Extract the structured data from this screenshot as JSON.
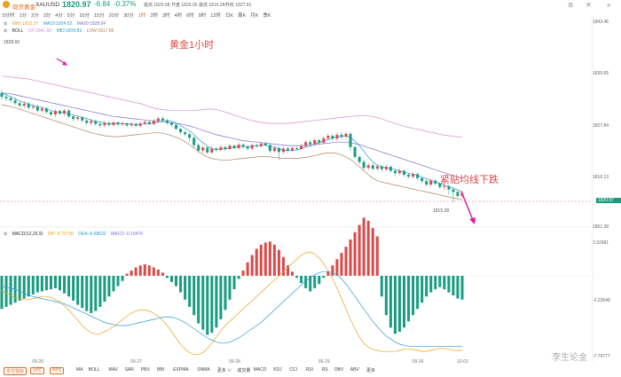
{
  "header": {
    "name": "现货黄金",
    "symbol": "XAUUSD",
    "price": "1820.97",
    "change": "-6.84",
    "change_pct": "-0.37%",
    "high": "最高 1829.58",
    "open": "开盘 1829.00",
    "low": "最低 1815.28",
    "prev_close": "昨收 1827.81"
  },
  "timeframes": [
    "5分时",
    "1分",
    "2分",
    "3分",
    "4分",
    "5分",
    "10分",
    "15分",
    "20分",
    "30分",
    "1时",
    "2时",
    "3时",
    "4时",
    "6时",
    "8时",
    "12时",
    "日K",
    "周K",
    "月K",
    "季K"
  ],
  "active_timeframe": 10,
  "legend": {
    "ma": [
      "MA5:1822.37",
      "MA10:1824.52",
      "MA20:1828.94"
    ],
    "boll": [
      "BOLL",
      "UP:1841.60",
      "MID:1829.83",
      "LOW:1817.86"
    ],
    "macd": [
      "MACD(12,26,9)",
      "DIF:-6.73750",
      "DEA:-6.68022",
      "MACD:-0.15476"
    ]
  },
  "annotations": {
    "title": "黄金1小时",
    "trend": "紧贴均线下跌",
    "high_mark": "1828.60",
    "low_mark": "1815.28"
  },
  "price_axis": [
    "1843.46",
    "1835.65",
    "1827.84",
    "1820.97",
    "1816.13",
    "1801.38"
  ],
  "price_tag": "1820.97",
  "macd_axis": [
    "3.32681",
    "-2.23548",
    "-7.79777"
  ],
  "dates": [
    "09-26",
    "09-27",
    "09-28",
    "09-29",
    "09-30",
    "10-02"
  ],
  "bottom": {
    "buttons": [
      "多空指标",
      "VPC",
      "PPS"
    ],
    "indicators": [
      "MA",
      "BOLL",
      "MAV",
      "SAR",
      "PBX",
      "BBI",
      "EXPMA",
      "SNMA",
      "更多 ∨",
      "成交量",
      "MACD",
      "KDJ",
      "CCI",
      "RSI",
      "RS",
      "OBV",
      "ABV",
      "更多"
    ]
  },
  "watermark": "李生论金",
  "colors": {
    "up": "#d94a4a",
    "down": "#1a9c80",
    "boll_up": "#d58bd8",
    "ma": "#2d98d3",
    "ma20": "#7b6fd6",
    "boll_low": "#b5825a",
    "arrow": "#e11aa3"
  },
  "chart_data": {
    "type": "candlestick",
    "price_range": [
      1801.38,
      1843.46
    ],
    "candles": [
      [
        1828.6,
        1827.8,
        1829.2,
        1827.2
      ],
      [
        1827.8,
        1827.5,
        1828.5,
        1826.9
      ],
      [
        1827.5,
        1827.1,
        1828.0,
        1826.6
      ],
      [
        1827.1,
        1826.5,
        1827.6,
        1826.1
      ],
      [
        1826.5,
        1826.0,
        1827.0,
        1825.7
      ],
      [
        1826.0,
        1826.4,
        1826.9,
        1825.5
      ],
      [
        1826.4,
        1825.6,
        1826.8,
        1825.2
      ],
      [
        1825.6,
        1825.8,
        1826.4,
        1825.2
      ],
      [
        1825.8,
        1825.0,
        1826.2,
        1824.6
      ],
      [
        1825.0,
        1825.4,
        1825.9,
        1824.6
      ],
      [
        1825.4,
        1824.7,
        1825.8,
        1824.3
      ],
      [
        1824.7,
        1824.2,
        1825.1,
        1823.8
      ],
      [
        1824.2,
        1824.9,
        1825.3,
        1823.7
      ],
      [
        1824.9,
        1824.4,
        1825.2,
        1824.0
      ],
      [
        1824.4,
        1825.0,
        1825.4,
        1823.9
      ],
      [
        1825.0,
        1823.8,
        1825.3,
        1823.5
      ],
      [
        1823.8,
        1823.3,
        1824.2,
        1822.8
      ],
      [
        1823.3,
        1823.6,
        1824.0,
        1822.9
      ],
      [
        1823.6,
        1823.0,
        1823.9,
        1822.6
      ],
      [
        1823.0,
        1822.5,
        1823.4,
        1822.1
      ],
      [
        1822.5,
        1822.9,
        1823.3,
        1822.0
      ],
      [
        1822.9,
        1822.3,
        1823.2,
        1821.9
      ],
      [
        1822.3,
        1822.0,
        1822.7,
        1821.5
      ],
      [
        1822.0,
        1822.5,
        1822.9,
        1821.6
      ],
      [
        1822.5,
        1822.1,
        1822.9,
        1821.7
      ],
      [
        1822.1,
        1822.6,
        1823.0,
        1821.8
      ],
      [
        1822.6,
        1822.2,
        1822.9,
        1821.9
      ],
      [
        1822.2,
        1822.4,
        1822.8,
        1821.8
      ],
      [
        1822.4,
        1822.0,
        1822.7,
        1821.6
      ],
      [
        1822.0,
        1822.3,
        1822.7,
        1821.6
      ],
      [
        1822.3,
        1821.9,
        1822.6,
        1821.6
      ],
      [
        1821.9,
        1822.4,
        1822.8,
        1821.5
      ],
      [
        1822.4,
        1822.7,
        1823.0,
        1822.0
      ],
      [
        1822.7,
        1822.3,
        1823.0,
        1822.0
      ],
      [
        1822.3,
        1822.9,
        1823.3,
        1822.0
      ],
      [
        1822.9,
        1823.4,
        1823.8,
        1822.5
      ],
      [
        1823.4,
        1823.0,
        1823.9,
        1822.7
      ],
      [
        1823.0,
        1822.5,
        1823.3,
        1822.1
      ],
      [
        1822.5,
        1822.1,
        1822.8,
        1821.7
      ],
      [
        1822.1,
        1821.3,
        1822.4,
        1820.9
      ],
      [
        1821.3,
        1820.6,
        1821.6,
        1820.2
      ],
      [
        1820.6,
        1820.2,
        1821.0,
        1819.8
      ],
      [
        1820.2,
        1819.5,
        1820.5,
        1818.7
      ],
      [
        1819.5,
        1818.0,
        1819.8,
        1817.4
      ],
      [
        1818.0,
        1816.9,
        1818.4,
        1816.5
      ],
      [
        1816.9,
        1817.5,
        1818.0,
        1816.4
      ],
      [
        1817.5,
        1816.5,
        1817.9,
        1816.2
      ],
      [
        1816.5,
        1817.3,
        1817.8,
        1816.2
      ],
      [
        1817.3,
        1817.0,
        1817.6,
        1816.6
      ],
      [
        1817.0,
        1817.6,
        1818.0,
        1816.7
      ],
      [
        1817.6,
        1817.2,
        1817.9,
        1816.8
      ],
      [
        1817.2,
        1817.9,
        1818.3,
        1816.9
      ],
      [
        1817.9,
        1817.4,
        1818.2,
        1817.0
      ],
      [
        1817.4,
        1818.1,
        1818.5,
        1817.0
      ],
      [
        1818.1,
        1817.7,
        1818.4,
        1817.3
      ],
      [
        1817.7,
        1817.3,
        1818.0,
        1816.9
      ],
      [
        1817.3,
        1818.0,
        1818.4,
        1817.0
      ],
      [
        1818.0,
        1817.8,
        1818.3,
        1817.4
      ],
      [
        1817.8,
        1818.3,
        1818.6,
        1817.4
      ],
      [
        1818.3,
        1818.0,
        1818.7,
        1817.7
      ],
      [
        1818.0,
        1816.8,
        1818.3,
        1816.4
      ],
      [
        1816.8,
        1817.4,
        1817.9,
        1816.4
      ],
      [
        1817.4,
        1816.6,
        1817.7,
        1815.0
      ],
      [
        1816.6,
        1817.3,
        1817.7,
        1816.2
      ],
      [
        1817.3,
        1816.9,
        1817.6,
        1816.4
      ],
      [
        1816.9,
        1817.4,
        1817.8,
        1816.6
      ],
      [
        1817.4,
        1817.2,
        1817.7,
        1816.9
      ],
      [
        1817.2,
        1817.8,
        1818.3,
        1817.0
      ],
      [
        1817.8,
        1818.6,
        1819.0,
        1817.5
      ],
      [
        1818.6,
        1818.2,
        1819.1,
        1817.9
      ],
      [
        1818.2,
        1819.0,
        1819.4,
        1817.9
      ],
      [
        1819.0,
        1818.5,
        1819.3,
        1818.2
      ],
      [
        1818.5,
        1819.4,
        1819.8,
        1818.2
      ],
      [
        1819.4,
        1819.9,
        1820.3,
        1819.0
      ],
      [
        1819.9,
        1819.3,
        1820.2,
        1818.9
      ],
      [
        1819.3,
        1820.1,
        1820.6,
        1818.9
      ],
      [
        1820.1,
        1819.7,
        1820.6,
        1819.3
      ],
      [
        1819.7,
        1820.3,
        1820.7,
        1819.2
      ],
      [
        1820.3,
        1817.6,
        1820.6,
        1816.8
      ],
      [
        1817.6,
        1815.6,
        1818.0,
        1815.2
      ],
      [
        1815.6,
        1814.6,
        1816.0,
        1814.1
      ],
      [
        1814.6,
        1813.4,
        1815.0,
        1812.9
      ],
      [
        1813.4,
        1813.9,
        1814.4,
        1812.9
      ],
      [
        1813.9,
        1813.2,
        1814.3,
        1812.8
      ],
      [
        1813.2,
        1813.7,
        1814.1,
        1812.8
      ],
      [
        1813.7,
        1813.1,
        1814.0,
        1812.6
      ],
      [
        1813.1,
        1813.6,
        1814.0,
        1812.7
      ],
      [
        1813.6,
        1812.8,
        1813.9,
        1812.4
      ],
      [
        1812.8,
        1812.3,
        1813.1,
        1811.7
      ],
      [
        1812.3,
        1812.8,
        1813.2,
        1811.9
      ],
      [
        1812.8,
        1812.0,
        1813.1,
        1811.6
      ],
      [
        1812.0,
        1811.6,
        1812.4,
        1811.2
      ],
      [
        1811.6,
        1812.1,
        1812.5,
        1811.2
      ],
      [
        1812.1,
        1811.3,
        1812.4,
        1810.8
      ],
      [
        1811.3,
        1810.7,
        1811.6,
        1810.2
      ],
      [
        1810.7,
        1810.0,
        1811.1,
        1809.6
      ],
      [
        1810.0,
        1810.8,
        1811.2,
        1809.6
      ],
      [
        1810.8,
        1810.2,
        1811.1,
        1809.8
      ],
      [
        1810.2,
        1809.5,
        1810.6,
        1809.1
      ],
      [
        1809.5,
        1809.7,
        1810.1,
        1808.8
      ],
      [
        1809.7,
        1809.0,
        1810.0,
        1808.0
      ],
      [
        1809.0,
        1808.5,
        1809.4,
        1806.5
      ],
      [
        1808.5,
        1807.7,
        1808.8,
        1807.2
      ],
      [
        1807.7,
        1808.2,
        1808.6,
        1807.2
      ]
    ],
    "ma5": [
      1828.6,
      1828.2,
      1827.8,
      1827.4,
      1826.9,
      1826.7,
      1826.3,
      1826.0,
      1825.8,
      1825.6,
      1825.4,
      1825.0,
      1824.8,
      1824.7,
      1824.5,
      1824.3,
      1824.1,
      1823.9,
      1823.6,
      1823.4,
      1823.1,
      1822.8,
      1822.7,
      1822.5,
      1822.4,
      1822.3,
      1822.4,
      1822.4,
      1822.3,
      1822.3,
      1822.2,
      1822.2,
      1822.3,
      1822.3,
      1822.4,
      1822.7,
      1823.0,
      1823.0,
      1822.8,
      1822.5,
      1822.0,
      1821.4,
      1820.9,
      1820.1,
      1819.2,
      1818.5,
      1817.8,
      1817.3,
      1817.1,
      1817.2,
      1817.2,
      1817.4,
      1817.5,
      1817.6,
      1817.7,
      1817.7,
      1817.8,
      1817.8,
      1817.9,
      1818.0,
      1817.7,
      1817.6,
      1817.3,
      1817.0,
      1816.9,
      1816.9,
      1817.0,
      1817.3,
      1817.6,
      1817.8,
      1818.2,
      1818.5,
      1818.8,
      1819.1,
      1819.4,
      1819.6,
      1819.7,
      1819.9,
      1819.5,
      1818.8,
      1817.9,
      1816.8,
      1815.6,
      1814.6,
      1813.9,
      1813.6,
      1813.4,
      1813.3,
      1813.1,
      1812.8,
      1812.5,
      1812.3,
      1812.1,
      1811.9,
      1811.5,
      1811.2,
      1810.8,
      1810.5,
      1810.2,
      1809.9,
      1809.6,
      1809.3,
      1808.9,
      1808.6
    ],
    "ma20": [
      1828.6,
      1828.5,
      1828.4,
      1828.2,
      1828.0,
      1827.8,
      1827.6,
      1827.4,
      1827.2,
      1827.0,
      1826.8,
      1826.6,
      1826.4,
      1826.2,
      1826.0,
      1825.8,
      1825.6,
      1825.4,
      1825.2,
      1825.0,
      1824.8,
      1824.6,
      1824.4,
      1824.2,
      1824.0,
      1823.8,
      1823.7,
      1823.6,
      1823.5,
      1823.4,
      1823.3,
      1823.2,
      1823.1,
      1823.0,
      1822.9,
      1822.8,
      1822.7,
      1822.6,
      1822.5,
      1822.4,
      1822.3,
      1822.1,
      1821.9,
      1821.6,
      1821.3,
      1821.0,
      1820.7,
      1820.4,
      1820.1,
      1819.9,
      1819.7,
      1819.5,
      1819.3,
      1819.1,
      1818.9,
      1818.8,
      1818.7,
      1818.6,
      1818.5,
      1818.4,
      1818.3,
      1818.2,
      1818.1,
      1818.0,
      1817.9,
      1817.9,
      1817.9,
      1817.9,
      1817.9,
      1818.0,
      1818.1,
      1818.2,
      1818.3,
      1818.4,
      1818.5,
      1818.6,
      1818.6,
      1818.6,
      1818.5,
      1818.3,
      1818.1,
      1817.8,
      1817.5,
      1817.2,
      1816.9,
      1816.6,
      1816.3,
      1816.0,
      1815.7,
      1815.4,
      1815.1,
      1814.8,
      1814.5,
      1814.2,
      1813.9,
      1813.6,
      1813.3,
      1813.0,
      1812.7,
      1812.4,
      1812.1,
      1811.8,
      1811.5,
      1811.2
    ],
    "boll_up": [
      1832.0,
      1831.9,
      1831.8,
      1831.7,
      1831.6,
      1831.5,
      1831.4,
      1831.2,
      1831.0,
      1830.8,
      1830.6,
      1830.4,
      1830.2,
      1830.0,
      1829.8,
      1829.6,
      1829.4,
      1829.2,
      1829.0,
      1828.8,
      1828.6,
      1828.4,
      1828.2,
      1828.0,
      1827.8,
      1827.6,
      1827.4,
      1827.2,
      1827.0,
      1826.8,
      1826.6,
      1826.4,
      1826.1,
      1825.8,
      1825.5,
      1825.3,
      1825.2,
      1825.1,
      1825.0,
      1825.0,
      1825.0,
      1825.0,
      1825.0,
      1825.0,
      1825.1,
      1825.2,
      1825.3,
      1825.3,
      1825.2,
      1825.0,
      1824.7,
      1824.4,
      1824.1,
      1823.8,
      1823.5,
      1823.2,
      1823.0,
      1822.8,
      1822.6,
      1822.5,
      1822.4,
      1822.4,
      1822.4,
      1822.4,
      1822.4,
      1822.5,
      1822.6,
      1822.7,
      1822.8,
      1822.9,
      1823.0,
      1823.1,
      1823.2,
      1823.3,
      1823.4,
      1823.5,
      1823.6,
      1823.7,
      1823.8,
      1823.9,
      1824.0,
      1824.0,
      1823.9,
      1823.8,
      1823.6,
      1823.3,
      1823.0,
      1822.7,
      1822.4,
      1822.1,
      1821.8,
      1821.6,
      1821.4,
      1821.2,
      1821.0,
      1820.8,
      1820.6,
      1820.4,
      1820.2,
      1820.0,
      1819.9,
      1819.8,
      1819.7,
      1819.6
    ],
    "boll_low": [
      1826.2,
      1826.0,
      1825.8,
      1825.6,
      1825.3,
      1825.0,
      1824.7,
      1824.4,
      1824.1,
      1823.8,
      1823.5,
      1823.2,
      1822.9,
      1822.6,
      1822.3,
      1822.0,
      1821.7,
      1821.4,
      1821.1,
      1820.8,
      1820.5,
      1820.3,
      1820.1,
      1819.9,
      1819.8,
      1819.7,
      1819.7,
      1819.8,
      1819.9,
      1820.0,
      1820.1,
      1820.2,
      1820.3,
      1820.4,
      1820.5,
      1820.5,
      1820.4,
      1820.2,
      1819.9,
      1819.6,
      1819.2,
      1818.7,
      1818.1,
      1817.4,
      1816.7,
      1816.1,
      1815.6,
      1815.3,
      1815.1,
      1815.0,
      1815.0,
      1815.0,
      1815.1,
      1815.2,
      1815.3,
      1815.4,
      1815.5,
      1815.6,
      1815.7,
      1815.7,
      1815.6,
      1815.5,
      1815.4,
      1815.3,
      1815.3,
      1815.3,
      1815.3,
      1815.4,
      1815.5,
      1815.7,
      1815.9,
      1816.1,
      1816.3,
      1816.4,
      1816.4,
      1816.3,
      1816.0,
      1815.6,
      1815.1,
      1814.4,
      1813.6,
      1812.8,
      1812.0,
      1811.3,
      1810.8,
      1810.5,
      1810.3,
      1810.1,
      1809.9,
      1809.7,
      1809.5,
      1809.3,
      1809.1,
      1808.9,
      1808.7,
      1808.5,
      1808.3,
      1808.1,
      1807.9,
      1807.7,
      1807.5,
      1807.3,
      1807.1,
      1806.9
    ],
    "macd_hist": [
      -3.2,
      -3.0,
      -2.8,
      -2.6,
      -2.4,
      -2.2,
      -2.0,
      -1.8,
      -1.6,
      -1.5,
      -1.4,
      -1.3,
      -1.2,
      -1.4,
      -1.7,
      -2.0,
      -2.4,
      -2.8,
      -3.1,
      -3.4,
      -3.6,
      -3.4,
      -3.0,
      -2.5,
      -2.0,
      -1.5,
      -1.0,
      -0.5,
      0.2,
      0.5,
      0.8,
      1.0,
      1.1,
      1.0,
      0.8,
      0.6,
      0.3,
      -0.2,
      -0.6,
      -1.0,
      -1.6,
      -2.3,
      -3.0,
      -3.8,
      -4.6,
      -5.2,
      -5.7,
      -5.5,
      -5.0,
      -4.2,
      -3.3,
      -2.3,
      -1.3,
      -0.3,
      0.5,
      1.3,
      2.0,
      2.6,
      3.0,
      3.2,
      3.3,
      3.0,
      2.5,
      1.8,
      1.0,
      0.4,
      -0.2,
      -0.7,
      -1.2,
      -1.5,
      -1.2,
      -0.8,
      -0.2,
      0.4,
      1.0,
      1.6,
      2.2,
      2.8,
      3.5,
      4.2,
      4.9,
      5.6,
      5.3,
      4.6,
      3.8,
      -2.0,
      -3.8,
      -5.0,
      -5.6,
      -5.4,
      -5.0,
      -4.4,
      -3.8,
      -3.2,
      -2.6,
      -2.0,
      -1.6,
      -1.3,
      -1.1,
      -1.3,
      -1.6,
      -1.9,
      -2.2,
      -2.3
    ],
    "dif": [
      -1.5,
      -1.7,
      -1.9,
      -2.1,
      -2.2,
      -2.3,
      -2.3,
      -2.2,
      -2.1,
      -2.0,
      -2.0,
      -2.1,
      -2.3,
      -2.5,
      -2.9,
      -3.3,
      -3.8,
      -4.3,
      -4.8,
      -5.2,
      -5.5,
      -5.6,
      -5.6,
      -5.4,
      -5.2,
      -4.9,
      -4.6,
      -4.2,
      -3.9,
      -3.6,
      -3.4,
      -3.3,
      -3.3,
      -3.4,
      -3.6,
      -3.9,
      -4.3,
      -4.8,
      -5.4,
      -6.0,
      -6.6,
      -7.1,
      -7.4,
      -7.6,
      -7.6,
      -7.4,
      -7.0,
      -6.5,
      -5.9,
      -5.3,
      -4.8,
      -4.4,
      -4.0,
      -3.6,
      -3.2,
      -2.8,
      -2.4,
      -2.0,
      -1.6,
      -1.2,
      -0.8,
      -0.4,
      0.0,
      0.4,
      0.8,
      1.2,
      1.6,
      2.0,
      2.2,
      2.3,
      2.1,
      1.7,
      1.2,
      0.5,
      -0.3,
      -1.2,
      -2.2,
      -3.2,
      -4.2,
      -5.1,
      -5.9,
      -6.5,
      -6.9,
      -7.1,
      -7.2,
      -7.3,
      -7.3,
      -7.3,
      -7.3,
      -7.2,
      -7.1,
      -7.1,
      -7.1,
      -7.2,
      -7.3,
      -7.3,
      -7.2,
      -7.1,
      -7.0,
      -7.0,
      -7.1,
      -7.2,
      -7.2,
      -7.2
    ],
    "dea": [
      -1.0,
      -1.1,
      -1.2,
      -1.3,
      -1.5,
      -1.7,
      -1.9,
      -2.0,
      -2.1,
      -2.2,
      -2.3,
      -2.4,
      -2.5,
      -2.6,
      -2.7,
      -2.9,
      -3.1,
      -3.3,
      -3.5,
      -3.7,
      -3.9,
      -4.1,
      -4.3,
      -4.5,
      -4.6,
      -4.7,
      -4.8,
      -4.8,
      -4.8,
      -4.7,
      -4.6,
      -4.5,
      -4.4,
      -4.3,
      -4.2,
      -4.1,
      -4.0,
      -4.0,
      -4.0,
      -4.1,
      -4.3,
      -4.5,
      -4.8,
      -5.1,
      -5.4,
      -5.7,
      -6.0,
      -6.2,
      -6.4,
      -6.5,
      -6.5,
      -6.4,
      -6.2,
      -6.0,
      -5.7,
      -5.4,
      -5.1,
      -4.8,
      -4.5,
      -4.1,
      -3.7,
      -3.3,
      -2.9,
      -2.5,
      -2.1,
      -1.7,
      -1.3,
      -0.9,
      -0.5,
      -0.2,
      0.1,
      0.3,
      0.4,
      0.4,
      0.3,
      0.1,
      -0.3,
      -0.8,
      -1.4,
      -2.0,
      -2.6,
      -3.2,
      -3.8,
      -4.4,
      -4.9,
      -5.4,
      -5.8,
      -6.1,
      -6.4,
      -6.6,
      -6.7,
      -6.8,
      -6.8,
      -6.8,
      -6.8,
      -6.8,
      -6.8,
      -6.8,
      -6.8,
      -6.8,
      -6.8,
      -6.8,
      -6.8,
      -6.8
    ],
    "macd_range": [
      -7.79777,
      3.32681
    ]
  }
}
